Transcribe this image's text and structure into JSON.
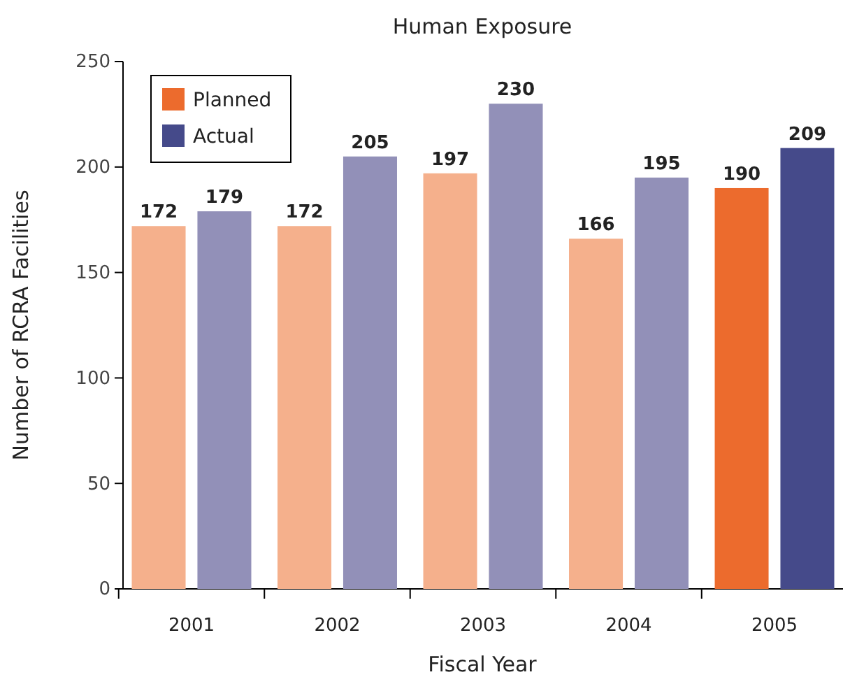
{
  "chart_data": {
    "type": "bar",
    "title": "Human Exposure",
    "xlabel": "Fiscal Year",
    "ylabel": "Number of RCRA Facilities",
    "categories": [
      "2001",
      "2002",
      "2003",
      "2004",
      "2005"
    ],
    "series": [
      {
        "name": "Planned",
        "color": "#ec6b2d",
        "colors": [
          "#f5b08c",
          "#f5b08c",
          "#f5b08c",
          "#f5b08c",
          "#ec6b2d"
        ],
        "values": [
          172,
          172,
          197,
          166,
          190
        ]
      },
      {
        "name": "Actual",
        "color": "#454a8a",
        "colors": [
          "#9290b8",
          "#9290b8",
          "#9290b8",
          "#9290b8",
          "#454a8a"
        ],
        "values": [
          179,
          205,
          230,
          195,
          209
        ]
      }
    ],
    "ylim": [
      0,
      250
    ],
    "yticks": [
      0,
      50,
      100,
      150,
      200,
      250
    ],
    "data_labels": true,
    "legend": "top left",
    "grid": false
  }
}
